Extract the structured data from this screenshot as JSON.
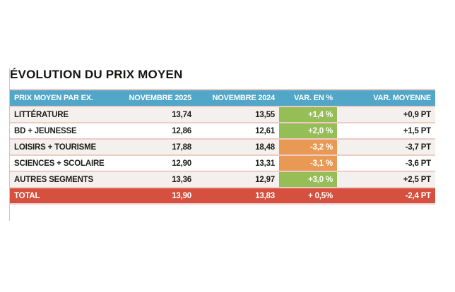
{
  "title": "ÉVOLUTION DU PRIX MOYEN",
  "colors": {
    "header-blue": "#52a6c8",
    "positive-green": "#95be56",
    "negative-orange": "#e89a54",
    "total-red": "#d6503f",
    "row-alt": "#f4f0ed",
    "divider-pink": "#f0cac4",
    "text-dark": "#1d1d1b"
  },
  "table": {
    "columns": [
      {
        "key": "label",
        "label": "PRIX MOYEN PAR EX.",
        "align": "left"
      },
      {
        "key": "nov2025",
        "label": "NOVEMBRE 2025",
        "align": "right"
      },
      {
        "key": "nov2024",
        "label": "NOVEMBRE 2024",
        "align": "right"
      },
      {
        "key": "var_pct",
        "label": "VAR. EN %",
        "align": "right"
      },
      {
        "key": "var_avg",
        "label": "VAR. MOYENNE",
        "align": "right"
      }
    ],
    "rows": [
      {
        "label": "LITTÉRATURE",
        "nov2025": "13,74",
        "nov2024": "13,55",
        "var_pct": "+1,4 %",
        "trend": "up",
        "var_avg": "+0,9 PT"
      },
      {
        "label": "BD + JEUNESSE",
        "nov2025": "12,86",
        "nov2024": "12,61",
        "var_pct": "+2,0 %",
        "trend": "up",
        "var_avg": "+1,5 PT"
      },
      {
        "label": "LOISIRS + TOURISME",
        "nov2025": "17,88",
        "nov2024": "18,48",
        "var_pct": "-3,2 %",
        "trend": "down",
        "var_avg": "-3,7 PT"
      },
      {
        "label": "SCIENCES + SCOLAIRE",
        "nov2025": "12,90",
        "nov2024": "13,31",
        "var_pct": "-3,1 %",
        "trend": "down",
        "var_avg": "-3,6 PT"
      },
      {
        "label": "AUTRES SEGMENTS",
        "nov2025": "13,36",
        "nov2024": "12,97",
        "var_pct": "+3,0 %",
        "trend": "up",
        "var_avg": "+2,5 PT"
      }
    ],
    "total": {
      "label": "TOTAL",
      "nov2025": "13,90",
      "nov2024": "13,83",
      "var_pct": "+ 0,5%",
      "var_avg": "-2,4 PT"
    }
  },
  "chart_data": {
    "type": "table",
    "title": "ÉVOLUTION DU PRIX MOYEN",
    "columns": [
      "PRIX MOYEN PAR EX.",
      "NOVEMBRE 2025",
      "NOVEMBRE 2024",
      "VAR. EN %",
      "VAR. MOYENNE"
    ],
    "rows": [
      [
        "LITTÉRATURE",
        13.74,
        13.55,
        1.4,
        0.9
      ],
      [
        "BD + JEUNESSE",
        12.86,
        12.61,
        2.0,
        1.5
      ],
      [
        "LOISIRS + TOURISME",
        17.88,
        18.48,
        -3.2,
        -3.7
      ],
      [
        "SCIENCES + SCOLAIRE",
        12.9,
        13.31,
        -3.1,
        -3.6
      ],
      [
        "AUTRES SEGMENTS",
        13.36,
        12.97,
        3.0,
        2.5
      ],
      [
        "TOTAL",
        13.9,
        13.83,
        0.5,
        -2.4
      ]
    ],
    "notes": "var_pct in percent; var_moyenne in points (PT); positive variances shown on green cells, negative on orange; TOTAL row on red"
  }
}
